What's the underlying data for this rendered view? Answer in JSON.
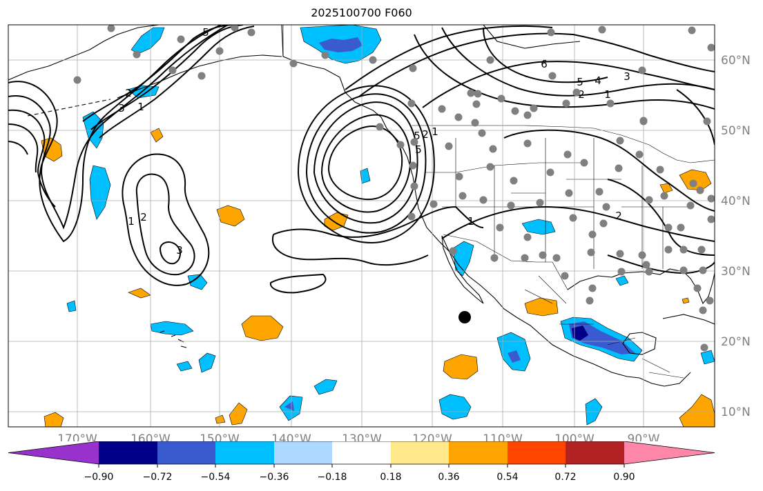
{
  "title": "2025100700 F060",
  "axes": {
    "lon_labels": [
      "170°W",
      "160°W",
      "150°W",
      "140°W",
      "130°W",
      "120°W",
      "110°W",
      "100°W",
      "90°W"
    ],
    "lat_labels": [
      "60°N",
      "50°N",
      "40°N",
      "30°N",
      "20°N",
      "10°N"
    ],
    "lon_range": [
      -178,
      -78
    ],
    "lat_range": [
      8,
      64
    ]
  },
  "contour_labels": [
    "5",
    "6",
    "5",
    "4",
    "3",
    "2",
    "1",
    "1",
    "2",
    "3",
    "3",
    "2",
    "1",
    "1",
    "2",
    "5",
    "5",
    "2",
    "1"
  ],
  "colorbar": {
    "ticks": [
      "−0.90",
      "−0.72",
      "−0.54",
      "−0.36",
      "−0.18",
      "0.18",
      "0.36",
      "0.54",
      "0.72",
      "0.90"
    ],
    "colors": [
      "#9932cc",
      "#000088",
      "#3a5bd0",
      "#00bfff",
      "#add8ff",
      "#ffffff",
      "#ffe98a",
      "#ffa500",
      "#ff4500",
      "#b22222",
      "#ff88aa"
    ],
    "extend": "both"
  },
  "marker_color": "#000000",
  "station_color": "#808080"
}
